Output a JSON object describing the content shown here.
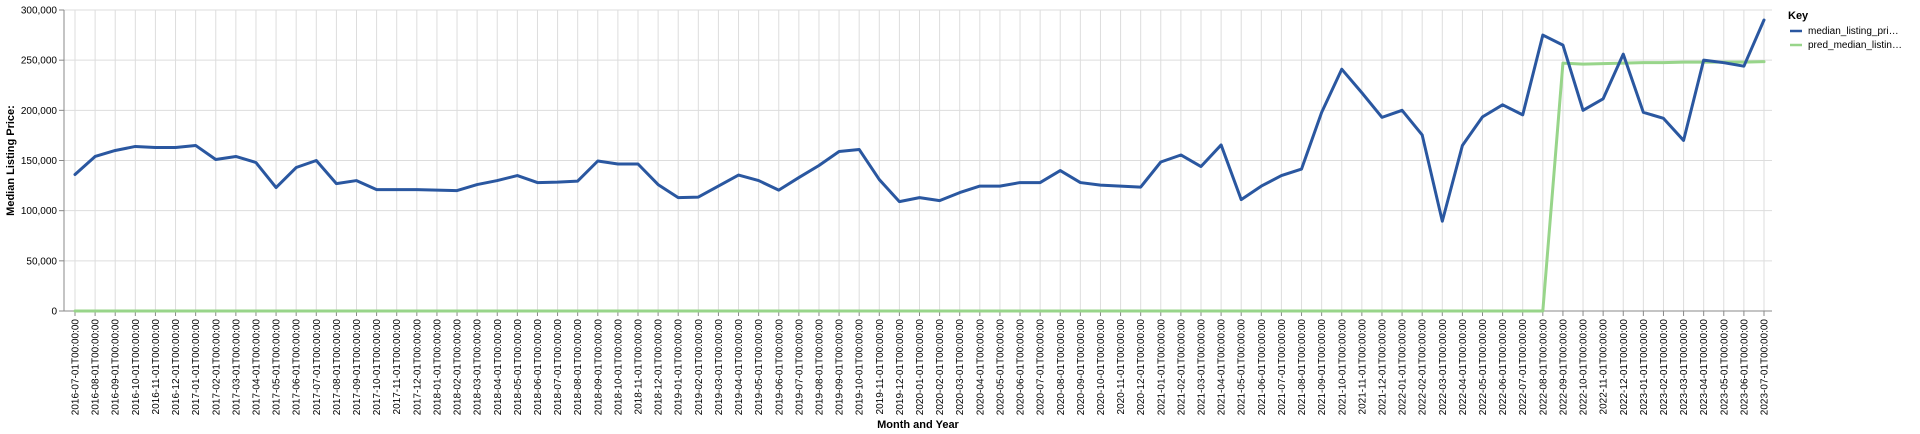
{
  "chart_data": {
    "type": "line",
    "xlabel": "Month and Year",
    "ylabel": "Median Listing Price:",
    "ylim": [
      0,
      300000
    ],
    "yticks": [
      0,
      50000,
      100000,
      150000,
      200000,
      250000,
      300000
    ],
    "ytick_labels": [
      "0",
      "50,000",
      "100,000",
      "150,000",
      "200,000",
      "250,000",
      "300,000"
    ],
    "grid": true,
    "legend": {
      "title": "Key",
      "placement": "top-right"
    },
    "x": [
      "2016-07-01T00:00:00",
      "2016-08-01T00:00:00",
      "2016-09-01T00:00:00",
      "2016-10-01T00:00:00",
      "2016-11-01T00:00:00",
      "2016-12-01T00:00:00",
      "2017-01-01T00:00:00",
      "2017-02-01T00:00:00",
      "2017-03-01T00:00:00",
      "2017-04-01T00:00:00",
      "2017-05-01T00:00:00",
      "2017-06-01T00:00:00",
      "2017-07-01T00:00:00",
      "2017-08-01T00:00:00",
      "2017-09-01T00:00:00",
      "2017-10-01T00:00:00",
      "2017-11-01T00:00:00",
      "2017-12-01T00:00:00",
      "2018-01-01T00:00:00",
      "2018-02-01T00:00:00",
      "2018-03-01T00:00:00",
      "2018-04-01T00:00:00",
      "2018-05-01T00:00:00",
      "2018-06-01T00:00:00",
      "2018-07-01T00:00:00",
      "2018-08-01T00:00:00",
      "2018-09-01T00:00:00",
      "2018-10-01T00:00:00",
      "2018-11-01T00:00:00",
      "2018-12-01T00:00:00",
      "2019-01-01T00:00:00",
      "2019-02-01T00:00:00",
      "2019-03-01T00:00:00",
      "2019-04-01T00:00:00",
      "2019-05-01T00:00:00",
      "2019-06-01T00:00:00",
      "2019-07-01T00:00:00",
      "2019-08-01T00:00:00",
      "2019-09-01T00:00:00",
      "2019-10-01T00:00:00",
      "2019-11-01T00:00:00",
      "2019-12-01T00:00:00",
      "2020-01-01T00:00:00",
      "2020-02-01T00:00:00",
      "2020-03-01T00:00:00",
      "2020-04-01T00:00:00",
      "2020-05-01T00:00:00",
      "2020-06-01T00:00:00",
      "2020-07-01T00:00:00",
      "2020-08-01T00:00:00",
      "2020-09-01T00:00:00",
      "2020-10-01T00:00:00",
      "2020-11-01T00:00:00",
      "2020-12-01T00:00:00",
      "2021-01-01T00:00:00",
      "2021-02-01T00:00:00",
      "2021-03-01T00:00:00",
      "2021-04-01T00:00:00",
      "2021-05-01T00:00:00",
      "2021-06-01T00:00:00",
      "2021-07-01T00:00:00",
      "2021-08-01T00:00:00",
      "2021-09-01T00:00:00",
      "2021-10-01T00:00:00",
      "2021-11-01T00:00:00",
      "2021-12-01T00:00:00",
      "2022-01-01T00:00:00",
      "2022-02-01T00:00:00",
      "2022-03-01T00:00:00",
      "2022-04-01T00:00:00",
      "2022-05-01T00:00:00",
      "2022-06-01T00:00:00",
      "2022-07-01T00:00:00",
      "2022-08-01T00:00:00",
      "2022-09-01T00:00:00",
      "2022-10-01T00:00:00",
      "2022-11-01T00:00:00",
      "2022-12-01T00:00:00",
      "2023-01-01T00:00:00",
      "2023-02-01T00:00:00",
      "2023-03-01T00:00:00",
      "2023-04-01T00:00:00",
      "2023-05-01T00:00:00",
      "2023-06-01T00:00:00",
      "2023-07-01T00:00:00"
    ],
    "series": [
      {
        "name": "median_listing_pri…",
        "color": "#2a57a0",
        "values": [
          136000,
          154000,
          160000,
          164000,
          163000,
          163000,
          165000,
          151000,
          154000,
          148000,
          123000,
          143000,
          150000,
          127000,
          130000,
          121000,
          121000,
          121000,
          120500,
          120000,
          126000,
          130000,
          135000,
          128000,
          128500,
          129500,
          149500,
          146500,
          146500,
          126000,
          113000,
          113500,
          124500,
          135500,
          130000,
          120500,
          133000,
          145000,
          159000,
          161000,
          131000,
          109000,
          113000,
          110000,
          118000,
          124500,
          124500,
          128000,
          128000,
          140000,
          128000,
          125500,
          124500,
          123500,
          148500,
          155500,
          144000,
          165500,
          111000,
          124500,
          135000,
          141500,
          198000,
          241000,
          217500,
          193000,
          200000,
          175500,
          89500,
          165000,
          193500,
          205500,
          195500,
          275000,
          265000,
          200000,
          211500,
          256000,
          198000,
          192000,
          170000,
          250000,
          247500,
          244000,
          290000
        ]
      },
      {
        "name": "pred_median_listin…",
        "color": "#98d58a",
        "values": [
          0,
          0,
          0,
          0,
          0,
          0,
          0,
          0,
          0,
          0,
          0,
          0,
          0,
          0,
          0,
          0,
          0,
          0,
          0,
          0,
          0,
          0,
          0,
          0,
          0,
          0,
          0,
          0,
          0,
          0,
          0,
          0,
          0,
          0,
          0,
          0,
          0,
          0,
          0,
          0,
          0,
          0,
          0,
          0,
          0,
          0,
          0,
          0,
          0,
          0,
          0,
          0,
          0,
          0,
          0,
          0,
          0,
          0,
          0,
          0,
          0,
          0,
          0,
          0,
          0,
          0,
          0,
          0,
          0,
          0,
          0,
          0,
          0,
          0,
          247000,
          246000,
          246500,
          247000,
          247500,
          247500,
          248000,
          248000,
          248000,
          248000,
          248500
        ]
      }
    ]
  }
}
